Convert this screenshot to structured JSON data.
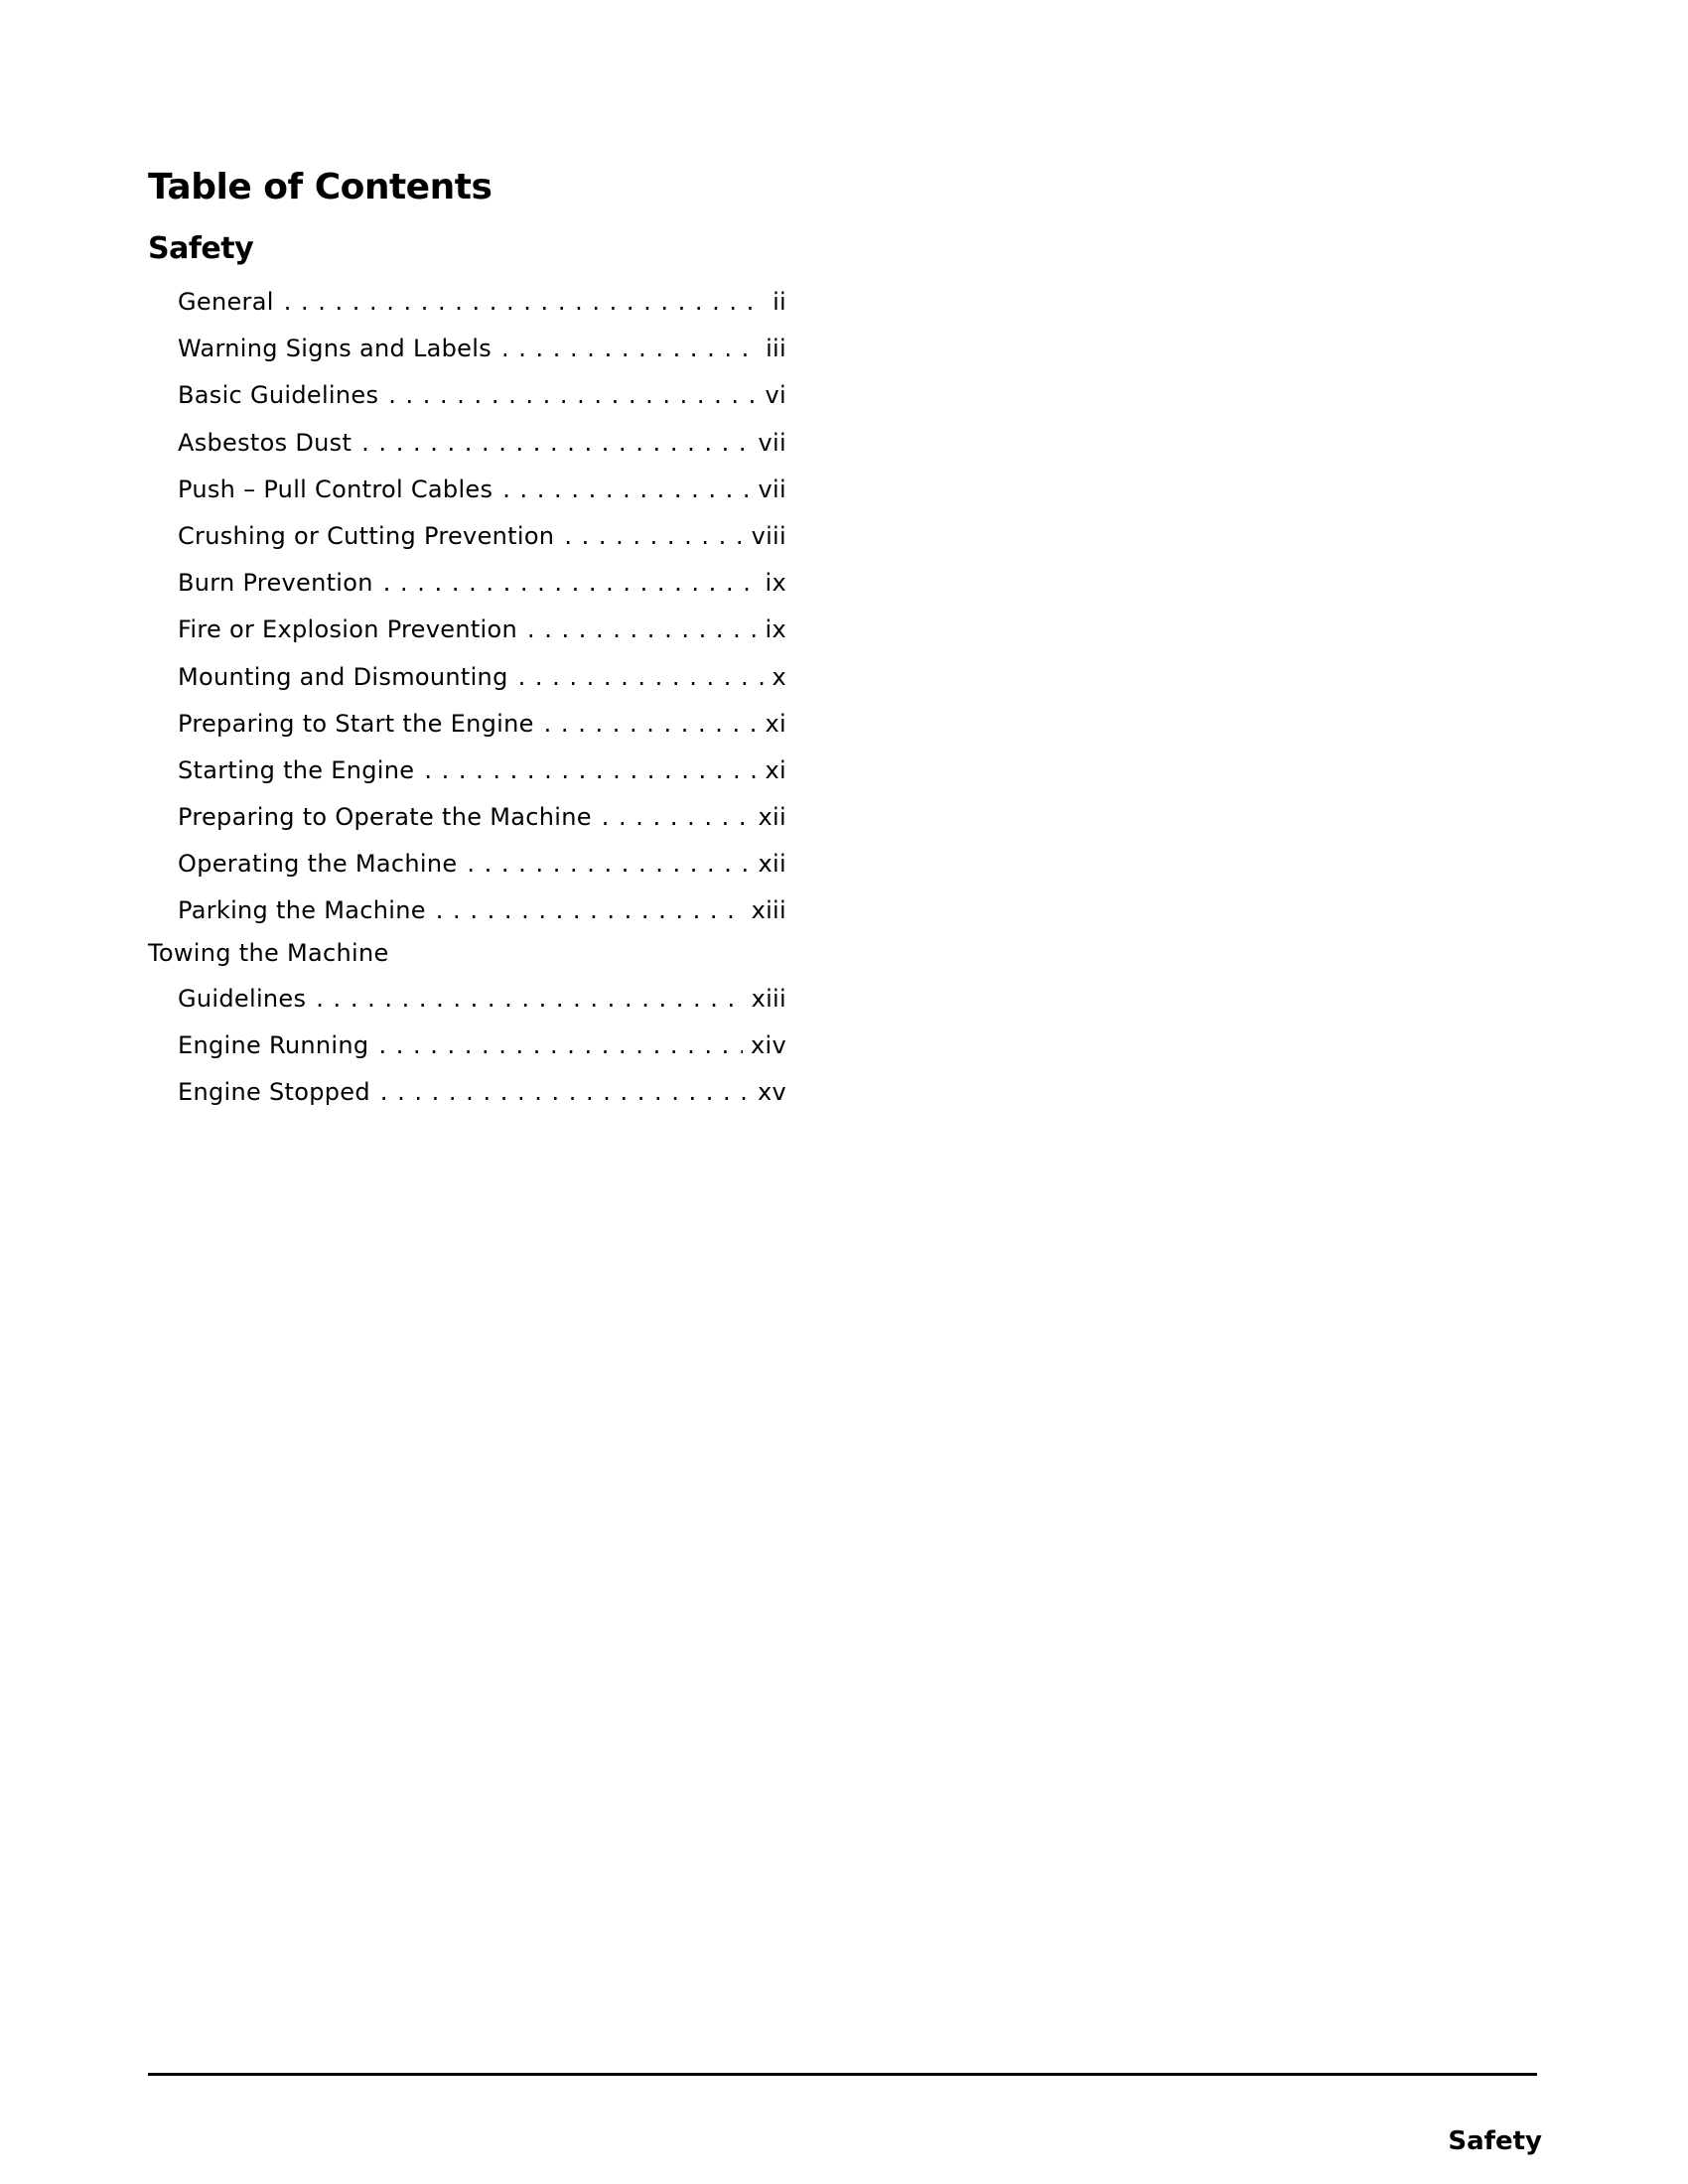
{
  "title": "Table of Contents",
  "section": "Safety",
  "entries": [
    {
      "label": "General",
      "page": "ii"
    },
    {
      "label": "Warning Signs and Labels",
      "page": "iii"
    },
    {
      "label": "Basic Guidelines",
      "page": "vi"
    },
    {
      "label": "Asbestos Dust",
      "page": "vii"
    },
    {
      "label": "Push – Pull Control Cables",
      "page": "vii"
    },
    {
      "label": "Crushing or Cutting Prevention",
      "page": "viii"
    },
    {
      "label": "Burn Prevention",
      "page": "ix"
    },
    {
      "label": "Fire or Explosion Prevention",
      "page": "ix"
    },
    {
      "label": "Mounting and Dismounting",
      "page": "x"
    },
    {
      "label": "Preparing to Start the Engine",
      "page": "xi"
    },
    {
      "label": "Starting the Engine",
      "page": "xi"
    },
    {
      "label": "Preparing to Operate the Machine",
      "page": "xii"
    },
    {
      "label": "Operating the Machine",
      "page": "xii"
    },
    {
      "label": "Parking the Machine",
      "page": "xiii"
    }
  ],
  "towing": {
    "heading": "Towing the Machine",
    "entries": [
      {
        "label": "Guidelines",
        "page": "xiii"
      },
      {
        "label": "Engine Running",
        "page": "xiv"
      },
      {
        "label": "Engine Stopped",
        "page": "xv"
      }
    ]
  },
  "footer": {
    "label": "Safety"
  }
}
